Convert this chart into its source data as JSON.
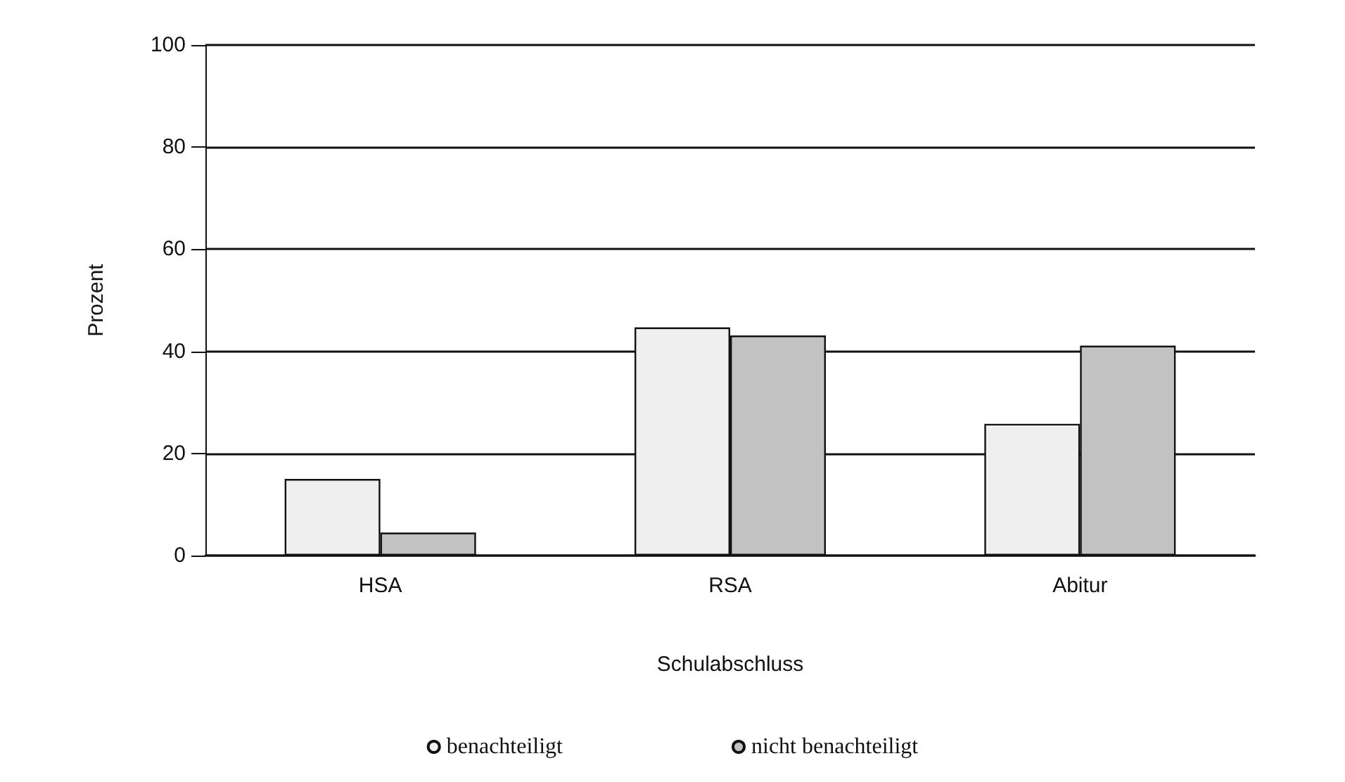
{
  "chart_data": {
    "type": "bar",
    "xlabel": "Schulabschluss",
    "ylabel": "Prozent",
    "categories": [
      "HSA",
      "RSA",
      "Abitur"
    ],
    "series": [
      {
        "name": "benachteiligt",
        "color": "#efefef",
        "values": [
          15,
          44.7,
          25.8
        ]
      },
      {
        "name": "nicht benachteiligt",
        "color": "#c2c2c2",
        "values": [
          4.5,
          43.1,
          41.1
        ]
      }
    ],
    "ylim": [
      0,
      100
    ],
    "yticks": [
      0,
      20,
      40,
      60,
      80,
      100
    ],
    "grid": "y",
    "legend": "bottom"
  }
}
